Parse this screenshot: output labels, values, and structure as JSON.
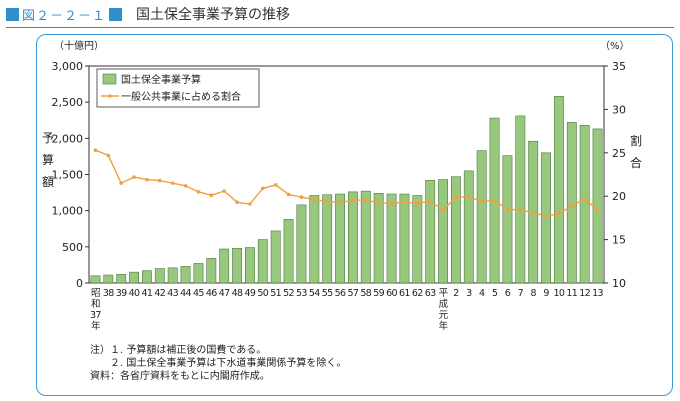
{
  "figure": {
    "label": "図２－２－１",
    "title": "国土保全事業予算の推移"
  },
  "notes": [
    "注）１. 予算額は補正後の国費である。",
    "　　２. 国土保全事業予算は下水道事業関係予算を除く。",
    "資料：各省庁資料をもとに内閣府作成。"
  ],
  "colors": {
    "bar": "#98c87e",
    "bar_stroke": "#4f7a40",
    "line": "#f0a040",
    "frame": "#3a9ad9",
    "accent": "#2f8fc8"
  },
  "chart_data": {
    "type": "bar",
    "categories": [
      "昭和37年",
      "38",
      "39",
      "40",
      "41",
      "42",
      "43",
      "44",
      "45",
      "46",
      "47",
      "48",
      "49",
      "50",
      "51",
      "52",
      "53",
      "54",
      "55",
      "56",
      "57",
      "58",
      "59",
      "60",
      "61",
      "62",
      "63",
      "平成元年",
      "2",
      "3",
      "4",
      "5",
      "6",
      "7",
      "8",
      "9",
      "10",
      "11",
      "12",
      "13"
    ],
    "tick_labels": [
      "昭\n和\n37\n年",
      "38",
      "39",
      "40",
      "41",
      "42",
      "43",
      "44",
      "45",
      "46",
      "47",
      "48",
      "49",
      "50",
      "51",
      "52",
      "53",
      "54",
      "55",
      "56",
      "57",
      "58",
      "59",
      "60",
      "61",
      "62",
      "63",
      "平\n成\n元\n年",
      "2",
      "3",
      "4",
      "5",
      "6",
      "7",
      "8",
      "9",
      "10",
      "11",
      "12",
      "13"
    ],
    "y_unit_left": "（十億円）",
    "y_unit_right": "（%）",
    "ylabel_left": "予算額",
    "ylabel_right": "割合",
    "ylim_left": [
      0,
      3000
    ],
    "yticks_left": [
      "0",
      "500",
      "1,000",
      "1,500",
      "2,000",
      "2,500",
      "3,000"
    ],
    "ylim_right": [
      10,
      35
    ],
    "yticks_right": [
      "10",
      "15",
      "20",
      "25",
      "30",
      "35"
    ],
    "legend_position": "top-left",
    "series": [
      {
        "name": "国土保全事業予算",
        "type": "bar",
        "axis": "left",
        "values": [
          100,
          110,
          120,
          150,
          170,
          200,
          210,
          230,
          270,
          340,
          470,
          480,
          490,
          600,
          720,
          880,
          1080,
          1210,
          1220,
          1230,
          1260,
          1270,
          1240,
          1230,
          1230,
          1210,
          1420,
          1430,
          1470,
          1550,
          1830,
          2280,
          1760,
          2310,
          1960,
          1800,
          2580,
          2220,
          2180,
          2130
        ]
      },
      {
        "name": "一般公共事業に占める割合",
        "type": "line",
        "axis": "right",
        "values": [
          25.3,
          24.7,
          21.5,
          22.2,
          21.9,
          21.8,
          21.5,
          21.2,
          20.5,
          20.1,
          20.6,
          19.3,
          19.1,
          20.9,
          21.3,
          20.2,
          19.9,
          19.6,
          19.4,
          19.3,
          19.5,
          19.6,
          19.2,
          19.2,
          19.3,
          19.2,
          19.4,
          18.4,
          19.9,
          19.9,
          19.4,
          19.5,
          18.5,
          18.4,
          18.1,
          17.7,
          18.0,
          18.9,
          19.7,
          18.4
        ]
      }
    ]
  }
}
